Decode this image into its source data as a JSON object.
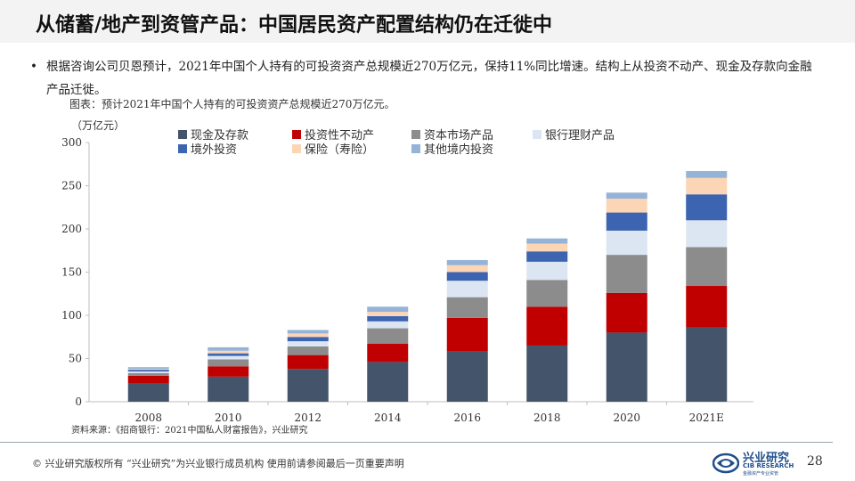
{
  "header": {
    "title": "从储蓄/地产到资管产品：中国居民资产配置结构仍在迁徙中"
  },
  "bullet": {
    "marker": "•",
    "text": "根据咨询公司贝恩预计，2021年中国个人持有的可投资资产总规模近270万亿元，保持11%同比增速。结构上从投资不动产、现金及存款向金融产品迁徙。"
  },
  "caption": "图表：预计2021年中国个人持有的可投资资产总规模近270万亿元。",
  "chart_data": {
    "type": "bar",
    "stacked": true,
    "unit_label": "（万亿元）",
    "categories": [
      "2008",
      "2010",
      "2012",
      "2014",
      "2016",
      "2018",
      "2020",
      "2021E"
    ],
    "ylim": [
      0,
      300
    ],
    "yticks": [
      0,
      50,
      100,
      150,
      200,
      250,
      300
    ],
    "grid": false,
    "legend_position": "top",
    "series": [
      {
        "name": "现金及存款",
        "color": "#44546a",
        "values": [
          21,
          29,
          38,
          46,
          58,
          65,
          80,
          86
        ]
      },
      {
        "name": "投资性不动产",
        "color": "#c00000",
        "values": [
          9,
          12,
          16,
          21,
          39,
          45,
          46,
          48
        ]
      },
      {
        "name": "资本市场产品",
        "color": "#8c8c8c",
        "values": [
          3,
          8,
          10,
          18,
          24,
          31,
          44,
          45
        ]
      },
      {
        "name": "银行理财产品",
        "color": "#dce6f2",
        "values": [
          2,
          4,
          6,
          8,
          19,
          21,
          28,
          31
        ]
      },
      {
        "name": "境外投资",
        "color": "#3c64b0",
        "values": [
          2,
          3,
          5,
          6,
          10,
          12,
          21,
          30
        ]
      },
      {
        "name": "保险（寿险）",
        "color": "#fcd5b4",
        "values": [
          1,
          3,
          4,
          5,
          8,
          9,
          16,
          19
        ]
      },
      {
        "name": "其他境内投资",
        "color": "#95b3d7",
        "values": [
          2,
          4,
          4,
          6,
          6,
          6,
          7,
          8
        ]
      }
    ]
  },
  "source": "资料来源：《招商银行：2021中国私人财富报告》，兴业研究",
  "footer": {
    "copyright": "© 兴业研究版权所有   “兴业研究”为兴业银行成员机构   使用前请参阅最后一页重要声明",
    "logo_cn": "兴业研究",
    "logo_en": "CIB RESEARCH",
    "logo_sub": "金融资产专业资管",
    "page": "28"
  }
}
